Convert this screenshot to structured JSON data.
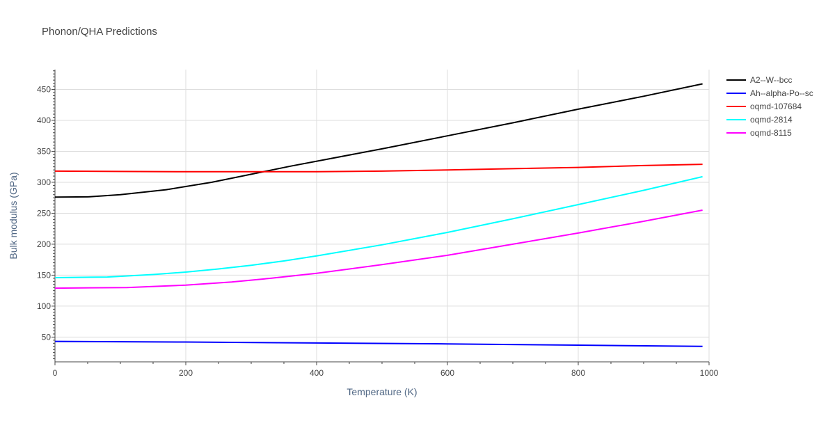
{
  "chart_data": {
    "type": "line",
    "title": "Phonon/QHA Predictions",
    "xlabel": "Temperature (K)",
    "ylabel": "Bulk modulus (GPa)",
    "xlim": [
      0,
      1000
    ],
    "ylim": [
      10,
      482
    ],
    "xticks": [
      0,
      200,
      400,
      600,
      800,
      1000
    ],
    "yticks": [
      50,
      100,
      150,
      200,
      250,
      300,
      350,
      400,
      450
    ],
    "grid": true,
    "legend_position": "top-right",
    "series": [
      {
        "name": "A2--W--bcc",
        "color": "#000000",
        "x": [
          0,
          50,
          100,
          170,
          240,
          300,
          360,
          420,
          500,
          600,
          700,
          800,
          900,
          990
        ],
        "y": [
          276,
          276.5,
          280,
          288,
          300,
          313,
          326,
          338,
          354,
          375,
          396,
          418,
          439,
          459
        ]
      },
      {
        "name": "Ah--alpha-Po--sc",
        "color": "#0000ff",
        "x": [
          0,
          200,
          400,
          600,
          800,
          990
        ],
        "y": [
          43,
          42,
          40.5,
          39,
          37,
          35
        ]
      },
      {
        "name": "oqmd-107684",
        "color": "#ff0000",
        "x": [
          0,
          100,
          200,
          300,
          400,
          500,
          600,
          700,
          800,
          900,
          990
        ],
        "y": [
          318,
          317.5,
          317,
          317,
          317,
          318,
          320,
          322,
          324,
          327,
          329
        ]
      },
      {
        "name": "oqmd-2814",
        "color": "#00ffff",
        "x": [
          0,
          80,
          150,
          200,
          250,
          300,
          350,
          400,
          500,
          600,
          700,
          800,
          900,
          990
        ],
        "y": [
          146,
          147,
          151,
          155,
          160,
          166,
          173,
          181,
          199,
          219,
          241,
          264,
          287,
          309
        ]
      },
      {
        "name": "oqmd-8115",
        "color": "#ff00ff",
        "x": [
          0,
          110,
          200,
          270,
          330,
          400,
          500,
          600,
          700,
          800,
          900,
          990
        ],
        "y": [
          129,
          130,
          134,
          139,
          145,
          153,
          167,
          182,
          200,
          218,
          237,
          255
        ]
      }
    ]
  }
}
